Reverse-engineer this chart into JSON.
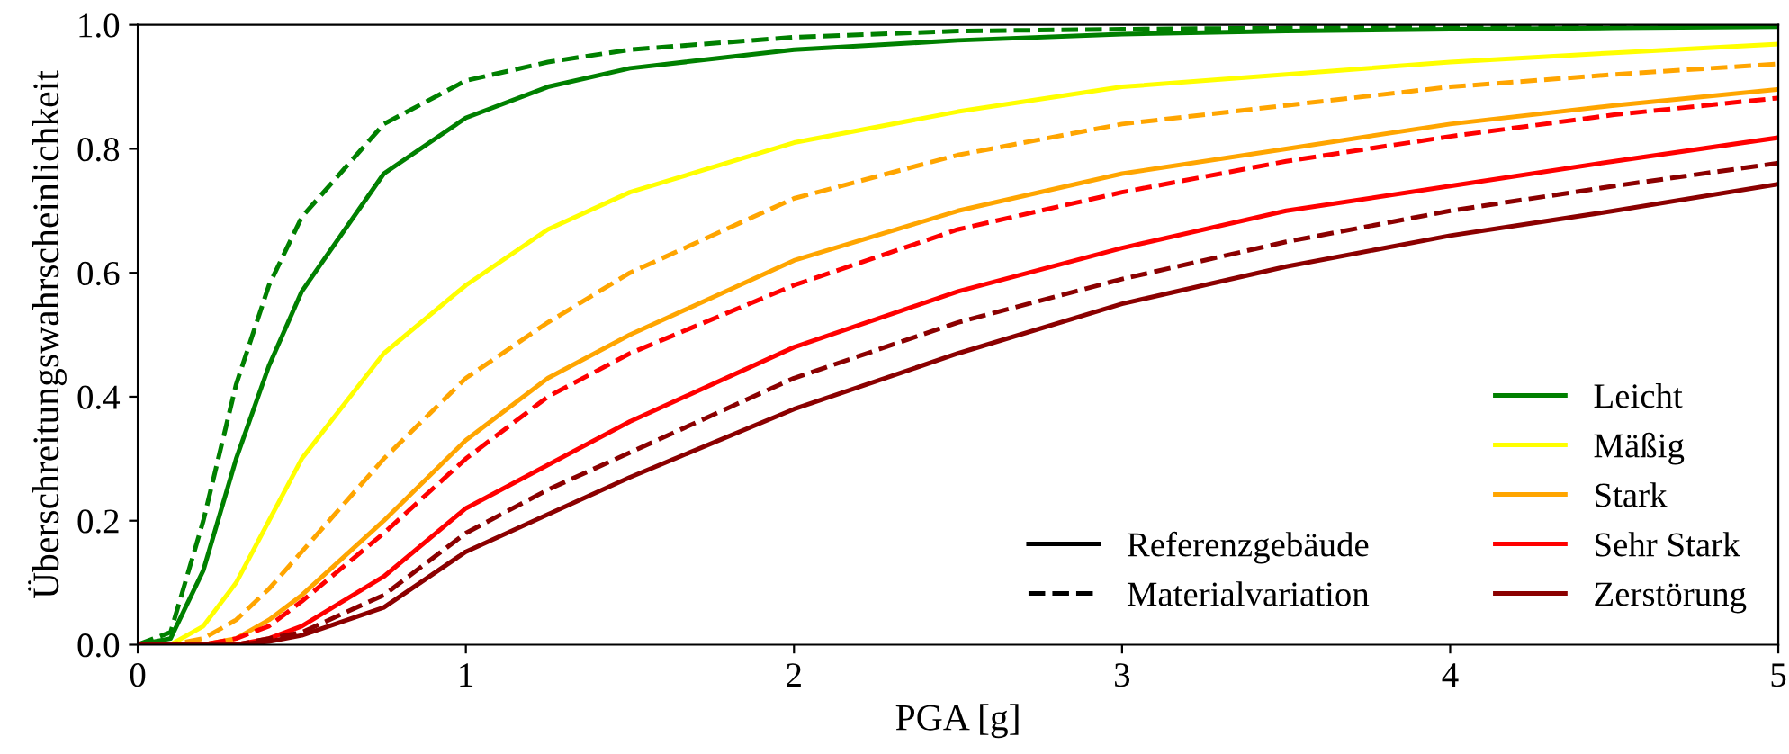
{
  "chart_data": {
    "type": "line",
    "xlabel": "PGA [g]",
    "ylabel": "Überschreitungswahrscheinlichkeit",
    "x": [
      0,
      0.1,
      0.2,
      0.3,
      0.4,
      0.5,
      0.75,
      1,
      1.25,
      1.5,
      2,
      2.5,
      3,
      3.5,
      4,
      4.5,
      5
    ],
    "xlim": [
      0,
      5
    ],
    "xticks": [
      0,
      1,
      2,
      3,
      4,
      5
    ],
    "ylim": [
      0,
      1
    ],
    "yticks": [
      {
        "value": 0,
        "label": "0.0"
      },
      {
        "value": 0.2,
        "label": "0.2"
      },
      {
        "value": 0.4,
        "label": "0.4"
      },
      {
        "value": 0.6,
        "label": "0.6"
      },
      {
        "value": 0.8,
        "label": "0.8"
      },
      {
        "value": 1,
        "label": "1.0"
      }
    ],
    "grid": false,
    "legend": "bottom right",
    "marker": "none",
    "series": [
      {
        "name": "Leicht",
        "color": "#008000",
        "line_style": "solid",
        "values": [
          0,
          0.01,
          0.12,
          0.3,
          0.45,
          0.57,
          0.76,
          0.85,
          0.9,
          0.93,
          0.96,
          0.975,
          0.985,
          0.99,
          0.993,
          0.995,
          0.997
        ]
      },
      {
        "color": "#008000",
        "line_style": "dashed",
        "values": [
          0,
          0.02,
          0.2,
          0.42,
          0.58,
          0.69,
          0.84,
          0.91,
          0.94,
          0.96,
          0.98,
          0.99,
          0.993,
          0.995,
          0.997,
          0.998,
          0.998
        ]
      },
      {
        "name": "Mäßig",
        "color": "#ffff00",
        "line_style": "solid",
        "values": [
          0,
          0,
          0.03,
          0.1,
          0.2,
          0.3,
          0.47,
          0.58,
          0.67,
          0.73,
          0.81,
          0.86,
          0.9,
          0.92,
          0.94,
          0.955,
          0.969
        ]
      },
      {
        "color": "#ffa500",
        "line_style": "dashed",
        "values": [
          0,
          0,
          0.01,
          0.04,
          0.09,
          0.15,
          0.3,
          0.43,
          0.52,
          0.6,
          0.72,
          0.79,
          0.84,
          0.87,
          0.9,
          0.92,
          0.937
        ]
      },
      {
        "name": "Stark",
        "color": "#ffa500",
        "line_style": "solid",
        "values": [
          0,
          0,
          0,
          0.01,
          0.04,
          0.08,
          0.2,
          0.33,
          0.43,
          0.5,
          0.62,
          0.7,
          0.76,
          0.8,
          0.84,
          0.87,
          0.896
        ]
      },
      {
        "color": "#ff0000",
        "line_style": "dashed",
        "values": [
          0,
          0,
          0,
          0.01,
          0.03,
          0.07,
          0.18,
          0.3,
          0.4,
          0.47,
          0.58,
          0.67,
          0.73,
          0.78,
          0.82,
          0.855,
          0.882
        ]
      },
      {
        "name": "Sehr Stark",
        "color": "#ff0000",
        "line_style": "solid",
        "values": [
          0,
          0,
          0,
          0,
          0.01,
          0.03,
          0.11,
          0.22,
          0.29,
          0.36,
          0.48,
          0.57,
          0.64,
          0.7,
          0.74,
          0.78,
          0.818
        ]
      },
      {
        "color": "#8b0000",
        "line_style": "dashed",
        "values": [
          0,
          0,
          0,
          0,
          0.01,
          0.02,
          0.08,
          0.18,
          0.25,
          0.31,
          0.43,
          0.52,
          0.59,
          0.65,
          0.7,
          0.74,
          0.777
        ]
      },
      {
        "name": "Zerstörung",
        "color": "#8b0000",
        "line_style": "solid",
        "values": [
          0,
          0,
          0,
          0,
          0.005,
          0.015,
          0.06,
          0.15,
          0.21,
          0.27,
          0.38,
          0.47,
          0.55,
          0.61,
          0.66,
          0.7,
          0.743
        ]
      },
      {
        "name": "Referenzgebäude",
        "color": "#000000",
        "line_style": "solid",
        "values": [
          null,
          null,
          null,
          null,
          null,
          null,
          null,
          null,
          null,
          null,
          null,
          null,
          null,
          null,
          null,
          null,
          null
        ]
      },
      {
        "name": "Materialvariation",
        "color": "#000000",
        "line_style": "dashed",
        "values": [
          null,
          null,
          null,
          null,
          null,
          null,
          null,
          null,
          null,
          null,
          null,
          null,
          null,
          null,
          null,
          null,
          null
        ]
      }
    ]
  }
}
